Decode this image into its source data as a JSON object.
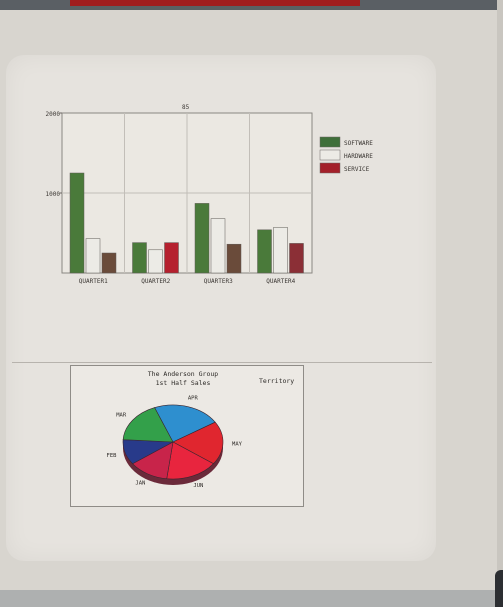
{
  "chart_data": [
    {
      "type": "bar",
      "title": "",
      "xlabel": "",
      "ylabel": "",
      "ylim": [
        0,
        2000
      ],
      "yticks": [
        "2000",
        "1000"
      ],
      "categories": [
        "QUARTER1",
        "QUARTER2",
        "QUARTER3",
        "QUARTER4"
      ],
      "series": [
        {
          "name": "SOFTWARE",
          "color": "#4a7a3a",
          "values": [
            1250,
            380,
            870,
            540
          ]
        },
        {
          "name": "HARDWARE",
          "color": "#ecebe6",
          "values": [
            430,
            290,
            680,
            570
          ]
        },
        {
          "name": "SERVICE",
          "color": "#6a4b3a",
          "values": [
            250,
            380,
            360,
            370
          ]
        }
      ],
      "special_colors": {
        "QUARTER2-SERVICE": "#b5202e",
        "QUARTER4-SERVICE": "#8b2f36"
      },
      "legend": [
        "SOFTWARE",
        "HARDWARE",
        "SERVICE"
      ],
      "legend_colors": [
        "#3f6f3a",
        "#ecebe6",
        "#a3202a"
      ],
      "legend_position": "right",
      "grid": true,
      "corner_label": "85"
    },
    {
      "type": "pie",
      "title_lines": [
        "The Anderson Group",
        "1st Half Sales"
      ],
      "side_label": "Territory",
      "slices": [
        {
          "label": "APR",
          "value": 22,
          "color": "#2e8fcf"
        },
        {
          "label": "MAY",
          "value": 19,
          "color": "#e0262f"
        },
        {
          "label": "JUN",
          "value": 17,
          "color": "#e8253e"
        },
        {
          "label": "JAN",
          "value": 13,
          "color": "#c8244a"
        },
        {
          "label": "FEB",
          "value": 11,
          "color": "#283a8a"
        },
        {
          "label": "MAR",
          "value": 18,
          "color": "#33a04a"
        }
      ]
    }
  ]
}
